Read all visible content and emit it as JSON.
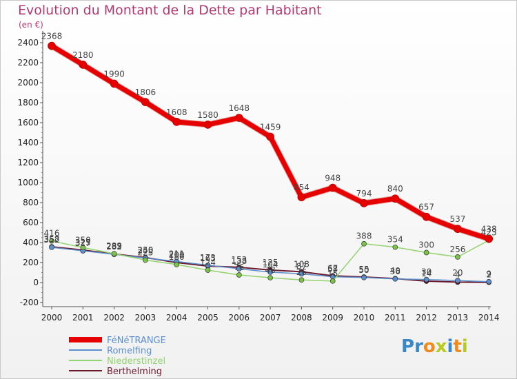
{
  "title": "Evolution du Montant de la Dette par Habitant",
  "unit": "(en €)",
  "logo": {
    "letters": [
      "P",
      "r",
      "o",
      "x",
      "i",
      "t",
      "i"
    ],
    "colors": [
      "#3a87c8",
      "#3a87c8",
      "#f08a1c",
      "#b8c920",
      "#3a87c8",
      "#f08a1c",
      "#b8c920"
    ]
  },
  "chart_data": {
    "type": "line",
    "x": [
      "2000",
      "2001",
      "2002",
      "2003",
      "2004",
      "2005",
      "2006",
      "2007",
      "2008",
      "2009",
      "2010",
      "2011",
      "2012",
      "2013",
      "2014"
    ],
    "yticks": [
      "-200",
      "0",
      "200",
      "400",
      "600",
      "800",
      "1000",
      "1200",
      "1400",
      "1600",
      "1800",
      "2000",
      "2200",
      "2400"
    ],
    "ylim": [
      -200,
      2500
    ],
    "grid": false,
    "legend_position": "bottom-left",
    "series": [
      {
        "name": "FéNéTRANGE",
        "color": "#e60000",
        "width": 7,
        "values": [
          2368,
          2180,
          1990,
          1806,
          1608,
          1580,
          1648,
          1459,
          854,
          948,
          794,
          840,
          657,
          537,
          438
        ],
        "labels": [
          "2368",
          "2180",
          "1990",
          "1806",
          "1608",
          "1580",
          "1648",
          "1459",
          "854",
          "948",
          "794",
          "840",
          "657",
          "537",
          "438"
        ]
      },
      {
        "name": "Romelfing",
        "color": "#5b8fce",
        "width": 1.5,
        "values": [
          352,
          317,
          282,
          245,
          211,
          173,
          138,
          104,
          87,
          58,
          50,
          36,
          30,
          20,
          9
        ],
        "labels": [
          "352",
          "317",
          "282",
          "245",
          "211",
          "173",
          "138",
          "104",
          "87",
          "58",
          "50",
          "36",
          "30",
          "20",
          "9"
        ]
      },
      {
        "name": "Niederstinzel",
        "color": "#92d36e",
        "width": 1.5,
        "values": [
          416,
          350,
          289,
          225,
          180,
          124,
          76,
          48,
          26,
          15,
          388,
          354,
          300,
          256,
          423
        ],
        "labels": [
          "416",
          "350",
          "289",
          "225",
          "180",
          "124",
          "76",
          "48",
          "26",
          "15",
          "388",
          "354",
          "300",
          "256",
          "423"
        ]
      },
      {
        "name": "Berthelming",
        "color": "#6b1a2e",
        "width": 2,
        "values": [
          358,
          325,
          285,
          250,
          200,
          165,
          153,
          125,
          108,
          67,
          55,
          40,
          14,
          4,
          2
        ],
        "labels": [
          "358",
          "325",
          "285",
          "250",
          "200",
          "165",
          "153",
          "125",
          "108",
          "67",
          "55",
          "40",
          "14",
          "4",
          "2"
        ]
      }
    ]
  }
}
